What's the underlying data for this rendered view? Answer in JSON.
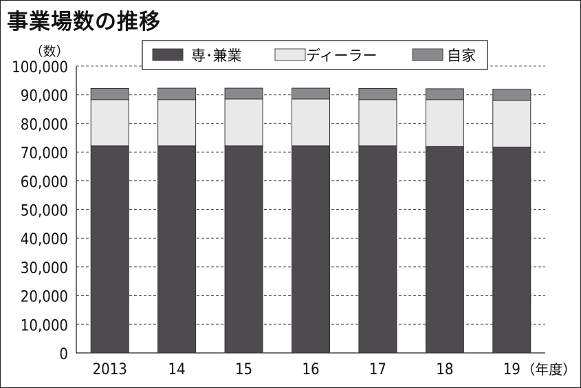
{
  "chart_data": {
    "type": "bar",
    "stacked": true,
    "title": "事業場数の推移",
    "ylabel": "（数）",
    "xlabel_suffix": "（年度）",
    "categories": [
      "2013",
      "14",
      "15",
      "16",
      "17",
      "18",
      "19"
    ],
    "series": [
      {
        "name": "専･兼業",
        "color": "#4d4b4e",
        "values": [
          72200,
          72200,
          72200,
          72200,
          72200,
          72000,
          71700
        ]
      },
      {
        "name": "ディーラー",
        "color": "#e9e9ea",
        "values": [
          16100,
          16100,
          16300,
          16300,
          16100,
          16300,
          16300
        ]
      },
      {
        "name": "自家",
        "color": "#8a8a8c",
        "values": [
          3900,
          4000,
          3800,
          3800,
          3900,
          3800,
          3900
        ]
      }
    ],
    "ylim": [
      0,
      100000
    ],
    "yticks": [
      "0",
      "10,000",
      "20,000",
      "30,000",
      "40,000",
      "50,000",
      "60,000",
      "70,000",
      "80,000",
      "90,000",
      "100,000"
    ],
    "grid": "horizontal-dashed",
    "legend_position": "top"
  }
}
